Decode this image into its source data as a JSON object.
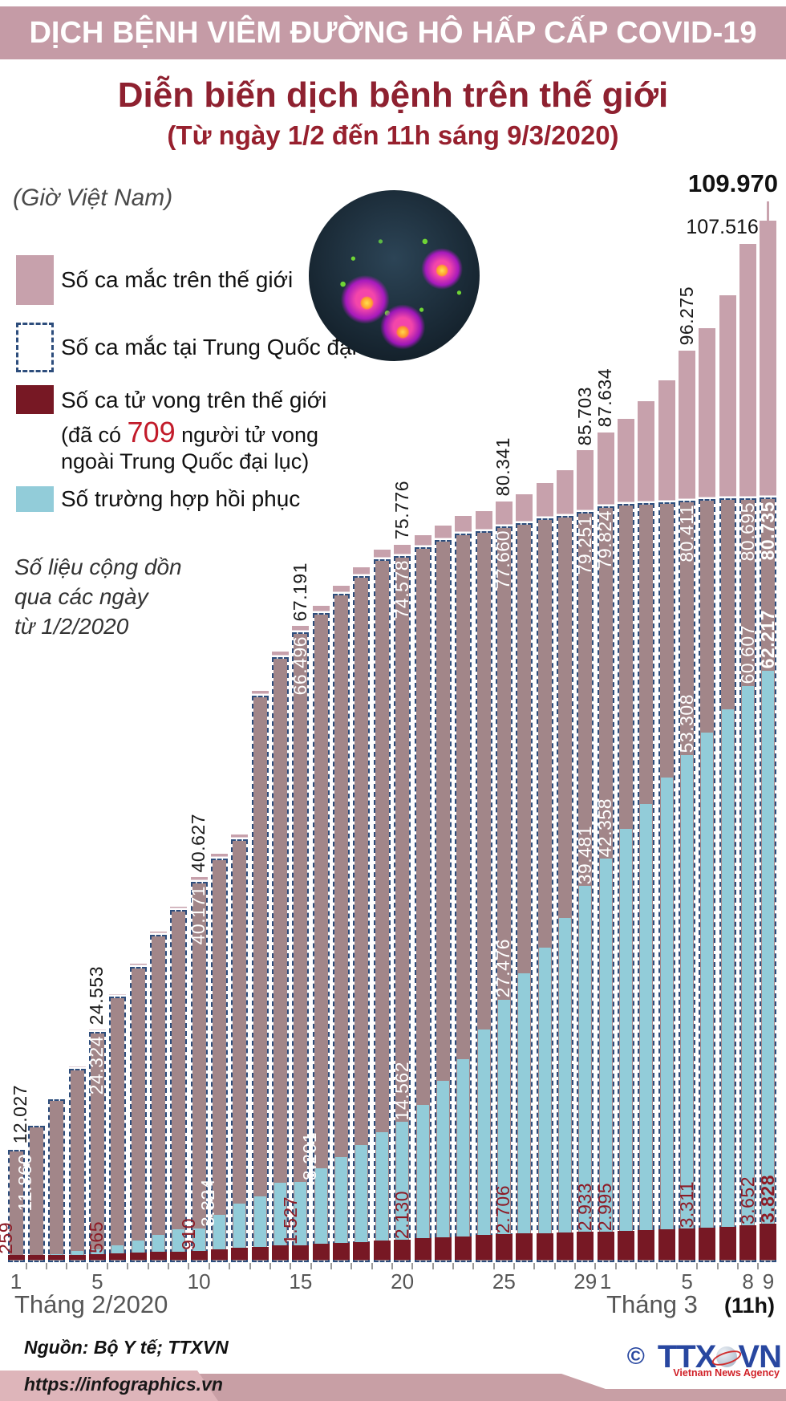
{
  "banner": {
    "title": "DỊCH BỆNH VIÊM ĐƯỜNG HÔ HẤP CẤP COVID-19",
    "bg_color": "#c59ba6"
  },
  "header": {
    "title": "Diễn biến dịch bệnh trên thế giới",
    "subtitle": "(Từ ngày 1/2 đến 11h sáng 9/3/2020)",
    "timezone": "(Giờ Việt Nam)"
  },
  "legend": {
    "world": {
      "label": "Số ca mắc trên thế giới",
      "color": "#c7a1ac"
    },
    "china": {
      "label": "Số ca mắc tại Trung Quốc đại lục",
      "border_color": "#2d4d7c"
    },
    "deaths": {
      "label": "Số ca tử vong trên thế giới",
      "color": "#771824",
      "note_prefix": "(đã có ",
      "note_number": "709",
      "note_suffix": " người tử vong",
      "note_line2": "ngoài Trung Quốc đại lục)",
      "note_number_color": "#c21b2a"
    },
    "recovered": {
      "label": "Số trường hợp hồi phục",
      "color": "#92ccd9"
    }
  },
  "cumulative_note": {
    "line1": "Số liệu cộng dồn",
    "line2": "qua các ngày",
    "line3": "từ 1/2/2020"
  },
  "axis": {
    "month_feb": "Tháng 2/2020",
    "month_mar": "Tháng 3",
    "hour": "(11h)"
  },
  "footer": {
    "source": "Nguồn: Bộ Y tế; TTXVN",
    "url": "https://infographics.vn",
    "logo_copyright": "©",
    "logo_text_1": "TTX",
    "logo_text_2": "VN",
    "logo_caption": "Vietnam News Agency"
  },
  "chart_data": {
    "type": "bar",
    "title": "Diễn biến dịch bệnh trên thế giới (Từ ngày 1/2 đến 11h sáng 9/3/2020)",
    "ylim": [
      0,
      110000
    ],
    "x_dates": [
      "1/2",
      "2/2",
      "3/2",
      "4/2",
      "5/2",
      "6/2",
      "7/2",
      "8/2",
      "9/2",
      "10/2",
      "11/2",
      "12/2",
      "13/2",
      "14/2",
      "15/2",
      "16/2",
      "17/2",
      "18/2",
      "19/2",
      "20/2",
      "21/2",
      "22/2",
      "23/2",
      "24/2",
      "25/2",
      "26/2",
      "27/2",
      "28/2",
      "29/2",
      "1/3",
      "2/3",
      "3/3",
      "4/3",
      "5/3",
      "6/3",
      "7/3",
      "8/3",
      "9/3"
    ],
    "series": [
      {
        "key": "world",
        "name": "Số ca mắc trên thế giới",
        "color": "#c7a1ac",
        "values": [
          12027,
          14557,
          17391,
          20630,
          24553,
          28276,
          31481,
          34886,
          37558,
          40627,
          43103,
          45171,
          60328,
          64438,
          67191,
          69267,
          71429,
          73332,
          75204,
          75776,
          76787,
          77795,
          78811,
          79331,
          80341,
          81109,
          82294,
          83652,
          85703,
          87634,
          89068,
          90869,
          93091,
          96275,
          98588,
          102050,
          107516,
          109970
        ]
      },
      {
        "key": "china",
        "name": "Số ca mắc tại Trung Quốc đại lục",
        "color": "#a28689",
        "values": [
          11860,
          14380,
          17205,
          20438,
          24324,
          28018,
          31161,
          34546,
          37198,
          40171,
          42638,
          44653,
          59804,
          63851,
          66496,
          68500,
          70548,
          72436,
          74185,
          74578,
          75465,
          76288,
          76936,
          77150,
          77660,
          78064,
          78497,
          78824,
          79251,
          79824,
          80026,
          80151,
          80270,
          80411,
          80552,
          80651,
          80695,
          80735
        ]
      },
      {
        "key": "recovered",
        "name": "Số trường hợp hồi phục",
        "color": "#92ccd9",
        "values": [
          284,
          472,
          632,
          892,
          1124,
          1487,
          1998,
          2596,
          3219,
          3324,
          4740,
          5911,
          6723,
          8096,
          8201,
          9625,
          10853,
          12114,
          13429,
          14562,
          16373,
          18855,
          21185,
          24325,
          27476,
          30288,
          32933,
          36114,
          39481,
          42358,
          45498,
          48163,
          50882,
          53308,
          55670,
          58135,
          60607,
          62217
        ]
      },
      {
        "key": "deaths",
        "name": "Số ca tử vong trên thế giới",
        "color": "#771824",
        "values": [
          259,
          305,
          362,
          426,
          565,
          638,
          724,
          813,
          865,
          910,
          1115,
          1261,
          1380,
          1486,
          1527,
          1669,
          1775,
          1873,
          2009,
          2130,
          2247,
          2360,
          2462,
          2618,
          2706,
          2770,
          2814,
          2872,
          2933,
          2995,
          3085,
          3160,
          3254,
          3311,
          3408,
          3507,
          3652,
          3828
        ]
      }
    ],
    "value_labels": [
      {
        "s": "world",
        "i": 0,
        "t": "12.027",
        "dx": 6
      },
      {
        "s": "world",
        "i": 4,
        "t": "24.553"
      },
      {
        "s": "world",
        "i": 9,
        "t": "40.627"
      },
      {
        "s": "world",
        "i": 14,
        "t": "67.191"
      },
      {
        "s": "world",
        "i": 19,
        "t": "75.776"
      },
      {
        "s": "world",
        "i": 24,
        "t": "80.341"
      },
      {
        "s": "world",
        "i": 28,
        "t": "85.703"
      },
      {
        "s": "world",
        "i": 29,
        "t": "87.634"
      },
      {
        "s": "world",
        "i": 33,
        "t": "96.275"
      },
      {
        "s": "world",
        "i": 36,
        "t": "107.516",
        "h": true,
        "dx": -32
      },
      {
        "s": "world",
        "i": 37,
        "t": "109.970",
        "h": true,
        "bold": true,
        "dx": -44,
        "raise": 22
      },
      {
        "s": "china",
        "i": 0,
        "t": "11.860",
        "dx": 12
      },
      {
        "s": "china",
        "i": 4,
        "t": "24.324"
      },
      {
        "s": "china",
        "i": 9,
        "t": "40.171"
      },
      {
        "s": "china",
        "i": 14,
        "t": "66.496"
      },
      {
        "s": "china",
        "i": 19,
        "t": "74.578"
      },
      {
        "s": "china",
        "i": 24,
        "t": "77.660"
      },
      {
        "s": "china",
        "i": 28,
        "t": "79.251"
      },
      {
        "s": "china",
        "i": 29,
        "t": "79.824"
      },
      {
        "s": "china",
        "i": 33,
        "t": "80.411"
      },
      {
        "s": "china",
        "i": 36,
        "t": "80.695"
      },
      {
        "s": "china",
        "i": 37,
        "t": "80.735",
        "bold": true
      },
      {
        "s": "recovered",
        "i": 9,
        "t": "3.324",
        "dx": 12
      },
      {
        "s": "recovered",
        "i": 14,
        "t": "8.201",
        "dx": 12
      },
      {
        "s": "recovered",
        "i": 19,
        "t": "14.562"
      },
      {
        "s": "recovered",
        "i": 24,
        "t": "27.476"
      },
      {
        "s": "recovered",
        "i": 28,
        "t": "39.481"
      },
      {
        "s": "recovered",
        "i": 29,
        "t": "42.358"
      },
      {
        "s": "recovered",
        "i": 33,
        "t": "53.308"
      },
      {
        "s": "recovered",
        "i": 36,
        "t": "60.607"
      },
      {
        "s": "recovered",
        "i": 37,
        "t": "62.217",
        "bold": true
      },
      {
        "s": "deaths",
        "i": 0,
        "t": "259",
        "dx": -12
      },
      {
        "s": "deaths",
        "i": 4,
        "t": "565"
      },
      {
        "s": "deaths",
        "i": 9,
        "t": "910",
        "dx": -12
      },
      {
        "s": "deaths",
        "i": 14,
        "t": "1.527",
        "dx": -12
      },
      {
        "s": "deaths",
        "i": 19,
        "t": "2.130"
      },
      {
        "s": "deaths",
        "i": 24,
        "t": "2.706"
      },
      {
        "s": "deaths",
        "i": 28,
        "t": "2.933"
      },
      {
        "s": "deaths",
        "i": 29,
        "t": "2.995"
      },
      {
        "s": "deaths",
        "i": 33,
        "t": "3.311"
      },
      {
        "s": "deaths",
        "i": 36,
        "t": "3.652"
      },
      {
        "s": "deaths",
        "i": 37,
        "t": "3.828",
        "bold": true
      }
    ],
    "x_ticks": [
      {
        "index": 0,
        "label": "1"
      },
      {
        "index": 4,
        "label": "5"
      },
      {
        "index": 9,
        "label": "10"
      },
      {
        "index": 14,
        "label": "15"
      },
      {
        "index": 19,
        "label": "20"
      },
      {
        "index": 24,
        "label": "25"
      },
      {
        "index": 28,
        "label": "29"
      },
      {
        "index": 29,
        "label": "1"
      },
      {
        "index": 33,
        "label": "5"
      },
      {
        "index": 36,
        "label": "8"
      },
      {
        "index": 37,
        "label": "9"
      }
    ]
  }
}
